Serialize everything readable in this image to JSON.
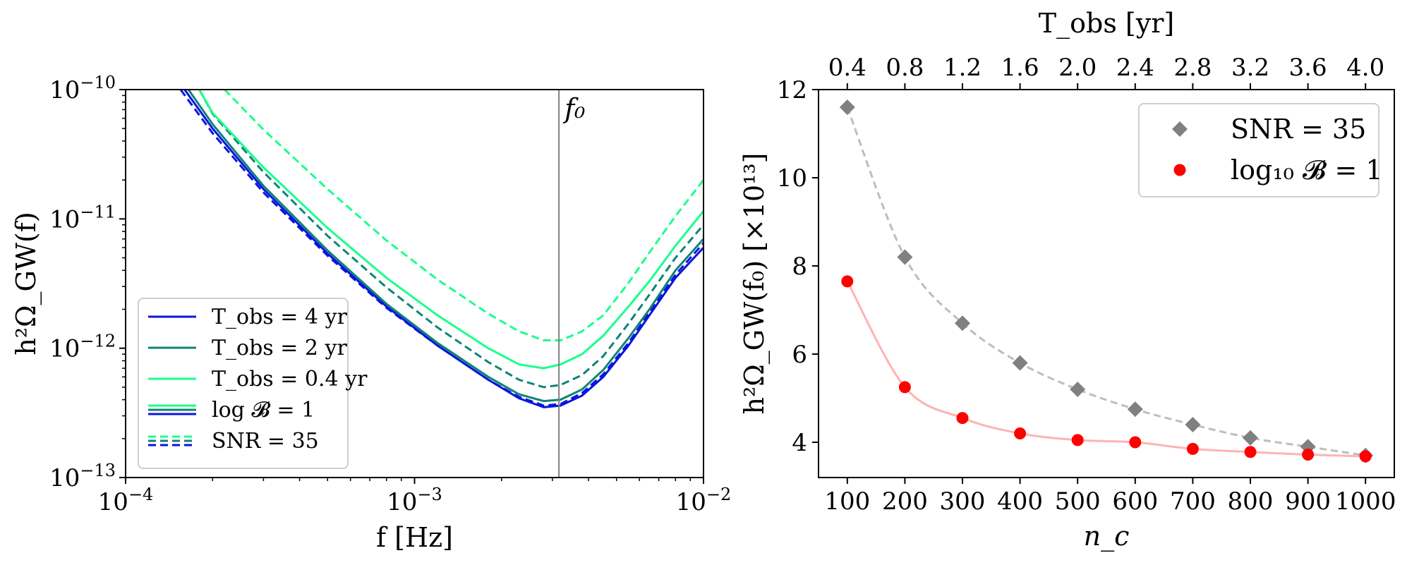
{
  "chart_data": [
    {
      "type": "line",
      "scale": "log-log",
      "xlabel": "f [Hz]",
      "ylabel": "h²Ω_GW(f)",
      "xlim": [
        0.0001,
        0.01
      ],
      "ylim": [
        1e-13,
        1e-10
      ],
      "x_ticks": [
        0.0001,
        0.001,
        0.01
      ],
      "x_tick_labels": [
        {
          "base": "10",
          "exp": "−4"
        },
        {
          "base": "10",
          "exp": "−3"
        },
        {
          "base": "10",
          "exp": "−2"
        }
      ],
      "y_ticks": [
        1e-13,
        1e-12,
        1e-11,
        1e-10
      ],
      "y_tick_labels": [
        {
          "base": "10",
          "exp": "−13"
        },
        {
          "base": "10",
          "exp": "−12"
        },
        {
          "base": "10",
          "exp": "−11"
        },
        {
          "base": "10",
          "exp": "−10"
        }
      ],
      "vline": {
        "x": 0.00316,
        "label": "f₀",
        "color": "#808080"
      },
      "legend": {
        "position": "lower-left",
        "entries": [
          {
            "label": "T_obs = 4 yr",
            "color": "#0a14e0",
            "style": "solid"
          },
          {
            "label": "T_obs = 2 yr",
            "color": "#0e8475",
            "style": "solid"
          },
          {
            "label": "T_obs = 0.4 yr",
            "color": "#1aff8c",
            "style": "solid"
          },
          {
            "label": "log 𝓑 = 1",
            "style": "solid",
            "colors": [
              "#1aff8c",
              "#0e8475",
              "#0a14e0"
            ]
          },
          {
            "label": "SNR = 35",
            "style": "dashed",
            "colors": [
              "#1aff8c",
              "#0e8475",
              "#0a14e0"
            ]
          }
        ]
      },
      "series": [
        {
          "name": "T_obs = 4 yr, log B = 1",
          "color": "#0a14e0",
          "style": "solid",
          "x": [
            0.00016,
            0.0002,
            0.0003,
            0.0005,
            0.0008,
            0.0012,
            0.0018,
            0.0023,
            0.0028,
            0.0032,
            0.0038,
            0.0045,
            0.0055,
            0.0065,
            0.008,
            0.01
          ],
          "y": [
            1e-10,
            5e-11,
            1.7e-11,
            5.4e-12,
            2.1e-12,
            1.05e-12,
            5.7e-13,
            4.1e-13,
            3.5e-13,
            3.6e-13,
            4.3e-13,
            6e-13,
            1.05e-12,
            1.8e-12,
            3.5e-12,
            6e-12
          ]
        },
        {
          "name": "T_obs = 4 yr, SNR = 35",
          "color": "#0a14e0",
          "style": "dashed",
          "x": [
            0.000155,
            0.0002,
            0.0003,
            0.0005,
            0.0008,
            0.0012,
            0.0018,
            0.0023,
            0.0028,
            0.0032,
            0.0038,
            0.0045,
            0.0055,
            0.0065,
            0.008,
            0.01
          ],
          "y": [
            1e-10,
            4.6e-11,
            1.6e-11,
            5.2e-12,
            2.05e-12,
            1.05e-12,
            5.7e-13,
            4.2e-13,
            3.6e-13,
            3.7e-13,
            4.5e-13,
            6.3e-13,
            1.1e-12,
            1.9e-12,
            3.7e-12,
            6.5e-12
          ]
        },
        {
          "name": "T_obs = 2 yr, log B = 1",
          "color": "#0e8475",
          "style": "solid",
          "x": [
            0.000165,
            0.0002,
            0.0003,
            0.0005,
            0.0008,
            0.0012,
            0.0018,
            0.0023,
            0.0028,
            0.0032,
            0.0038,
            0.0045,
            0.0055,
            0.0065,
            0.008,
            0.01
          ],
          "y": [
            1e-10,
            5.4e-11,
            1.8e-11,
            5.7e-12,
            2.2e-12,
            1.1e-12,
            6e-13,
            4.4e-13,
            3.9e-13,
            4e-13,
            4.8e-13,
            6.8e-13,
            1.2e-12,
            2e-12,
            4e-12,
            7e-12
          ]
        },
        {
          "name": "T_obs = 2 yr, SNR = 35",
          "color": "#0e8475",
          "style": "dashed",
          "x": [
            0.00018,
            0.0002,
            0.0003,
            0.0005,
            0.0008,
            0.0012,
            0.0018,
            0.0023,
            0.0028,
            0.0032,
            0.0038,
            0.0045,
            0.0055,
            0.0065,
            0.008,
            0.01
          ],
          "y": [
            1e-10,
            6.5e-11,
            2.3e-11,
            7.4e-12,
            2.95e-12,
            1.45e-12,
            7.8e-13,
            5.7e-13,
            5e-13,
            5.2e-13,
            6.2e-13,
            8.7e-13,
            1.55e-12,
            2.6e-12,
            5e-12,
            9e-12
          ]
        },
        {
          "name": "T_obs = 0.4 yr, log B = 1",
          "color": "#1aff8c",
          "style": "solid",
          "x": [
            0.00018,
            0.0002,
            0.0003,
            0.0005,
            0.0008,
            0.0012,
            0.0018,
            0.0023,
            0.0028,
            0.0032,
            0.0038,
            0.0045,
            0.0055,
            0.0065,
            0.008,
            0.01
          ],
          "y": [
            1e-10,
            6.6e-11,
            2.5e-11,
            8.5e-12,
            3.5e-12,
            1.8e-12,
            1e-12,
            7.5e-13,
            7e-13,
            7.5e-13,
            9e-13,
            1.25e-12,
            2.1e-12,
            3.3e-12,
            6.2e-12,
            1.15e-11
          ]
        },
        {
          "name": "T_obs = 0.4 yr, SNR = 35",
          "color": "#1aff8c",
          "style": "dashed",
          "x": [
            0.00022,
            0.0003,
            0.0005,
            0.0008,
            0.0012,
            0.0018,
            0.0023,
            0.0028,
            0.0032,
            0.0038,
            0.0045,
            0.0055,
            0.0065,
            0.008,
            0.01
          ],
          "y": [
            1e-10,
            4.9e-11,
            1.7e-11,
            6.8e-12,
            3.4e-12,
            1.85e-12,
            1.35e-12,
            1.15e-12,
            1.15e-12,
            1.35e-12,
            1.8e-12,
            3.2e-12,
            5.5e-12,
            1.05e-11,
            2e-11
          ]
        }
      ]
    },
    {
      "type": "scatter",
      "xlabel": "n_c",
      "ylabel": "h²Ω_GW(f₀) [×10¹³]",
      "top_xlabel": "T_obs [yr]",
      "xlim": [
        50,
        1050
      ],
      "ylim": [
        3.2,
        12.0
      ],
      "x_ticks": [
        100,
        200,
        300,
        400,
        500,
        600,
        700,
        800,
        900,
        1000
      ],
      "x_tick_labels": [
        "100",
        "200",
        "300",
        "400",
        "500",
        "600",
        "700",
        "800",
        "900",
        "1000"
      ],
      "y_ticks": [
        4,
        6,
        8,
        10,
        12
      ],
      "y_tick_labels": [
        "4",
        "6",
        "8",
        "10",
        "12"
      ],
      "top_ticks": [
        100,
        200,
        300,
        400,
        500,
        600,
        700,
        800,
        900,
        1000
      ],
      "top_tick_labels": [
        "0.4",
        "0.8",
        "1.2",
        "1.6",
        "2.0",
        "2.4",
        "2.8",
        "3.2",
        "3.6",
        "4.0"
      ],
      "legend": {
        "position": "top-right",
        "entries": [
          {
            "label": "SNR = 35",
            "marker": "diamond",
            "color": "#808080"
          },
          {
            "label": "log₁₀ 𝓑 = 1",
            "marker": "circle",
            "color": "#ff0000"
          }
        ]
      },
      "series": [
        {
          "name": "SNR = 35",
          "marker": "diamond",
          "color": "#808080",
          "fit_color": "#bdbdbd",
          "fit_style": "dashed",
          "x": [
            100,
            200,
            300,
            400,
            500,
            600,
            700,
            800,
            900,
            1000
          ],
          "y": [
            11.6,
            8.2,
            6.7,
            5.8,
            5.2,
            4.75,
            4.4,
            4.1,
            3.9,
            3.7
          ]
        },
        {
          "name": "log10 B = 1",
          "marker": "circle",
          "color": "#ff0000",
          "fit_color": "#ffb3b3",
          "fit_style": "solid",
          "x": [
            100,
            200,
            300,
            400,
            500,
            600,
            700,
            800,
            900,
            1000
          ],
          "y": [
            7.65,
            5.25,
            4.55,
            4.2,
            4.05,
            4.0,
            3.85,
            3.78,
            3.72,
            3.68
          ]
        }
      ]
    }
  ]
}
